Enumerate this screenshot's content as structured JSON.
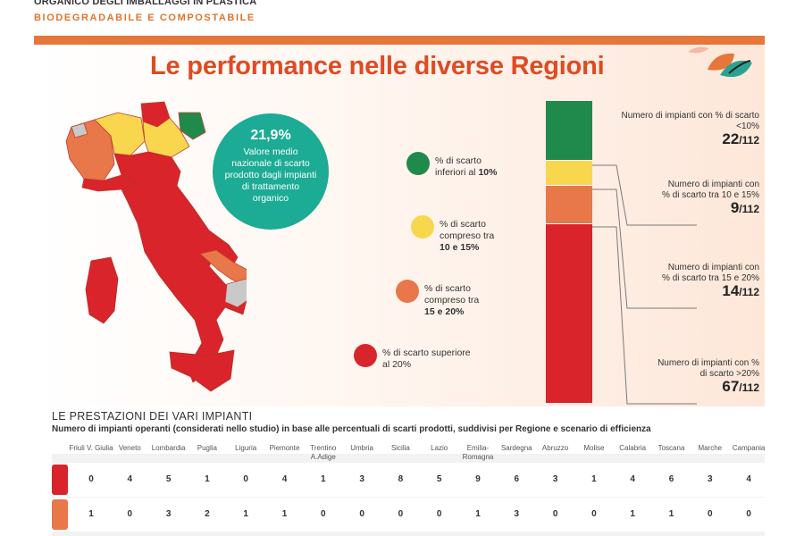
{
  "header": {
    "line1": "ORGANICO DEGLI IMBALLAGGI IN PLASTICA",
    "line2": "BIODEGRADABILE E COMPOSTABILE"
  },
  "title": "Le performance nelle diverse Regioni",
  "bubble": {
    "value": "21,9%",
    "text": "Valore medio nazionale di scarto prodotto dagli impianti di trattamento organico"
  },
  "legend": [
    {
      "pre": "% di scarto inferiori al ",
      "bold": "10%",
      "color": "#1f8a4c"
    },
    {
      "pre": "% di scarto compreso tra ",
      "bold": "10 e 15%",
      "color": "#f8d64e"
    },
    {
      "pre": "% di scarto compreso tra ",
      "bold": "15 e 20%",
      "color": "#e8784a"
    },
    {
      "pre": "% di scarto superiore al 20%",
      "bold": "",
      "color": "#d9242b"
    }
  ],
  "colors": {
    "green": "#1f8a4c",
    "yellow": "#f8d64e",
    "orange": "#e8784a",
    "red": "#d9242b",
    "teal": "#1cab94",
    "accent": "#e6763a",
    "title": "#e04a22"
  },
  "chart_data": [
    {
      "type": "bar",
      "stacked": true,
      "total": 112,
      "series": [
        {
          "label": "Numero di impianti con % di scarto <10%",
          "value": 22,
          "color": "#1f8a4c"
        },
        {
          "label": "Numero di impianti con % di scarto tra 10 e 15%",
          "value": 9,
          "color": "#f8d64e"
        },
        {
          "label": "Numero di impianti con % di scarto tra 15 e 20%",
          "value": 14,
          "color": "#e8784a"
        },
        {
          "label": "Numero di impianti con % di scarto >20%",
          "value": 67,
          "color": "#d9242b"
        }
      ],
      "denominator_label": "/112"
    },
    {
      "type": "table",
      "title": "LE PRESTAZIONI DEI VARI IMPIANTI",
      "subtitle": "Numero di impianti operanti (considerati nello studio) in base alle percentuali di scarti prodotti, suddivisi per Regione e scenario di efficienza",
      "columns": [
        "Friuli V. Giulia",
        "Veneto",
        "Lombardia",
        "Puglia",
        "Liguria",
        "Piemonte",
        "Trentino A.Adige",
        "Umbria",
        "Sicilia",
        "Lazio",
        "Emilia-Romagna",
        "Sardegna",
        "Abruzzo",
        "Molise",
        "Calabria",
        "Toscana",
        "Marche",
        "Campania"
      ],
      "rows": [
        {
          "scenario": "% di scarto superiore al 20%",
          "color": "#d9242b",
          "values": [
            0,
            4,
            5,
            1,
            0,
            4,
            1,
            3,
            8,
            5,
            9,
            6,
            3,
            1,
            4,
            6,
            3,
            4
          ]
        },
        {
          "scenario": "% di scarto compreso tra 15 e 20%",
          "color": "#e8784a",
          "values": [
            1,
            0,
            3,
            2,
            1,
            1,
            0,
            0,
            0,
            0,
            1,
            3,
            0,
            0,
            1,
            1,
            0,
            0
          ]
        }
      ]
    }
  ]
}
